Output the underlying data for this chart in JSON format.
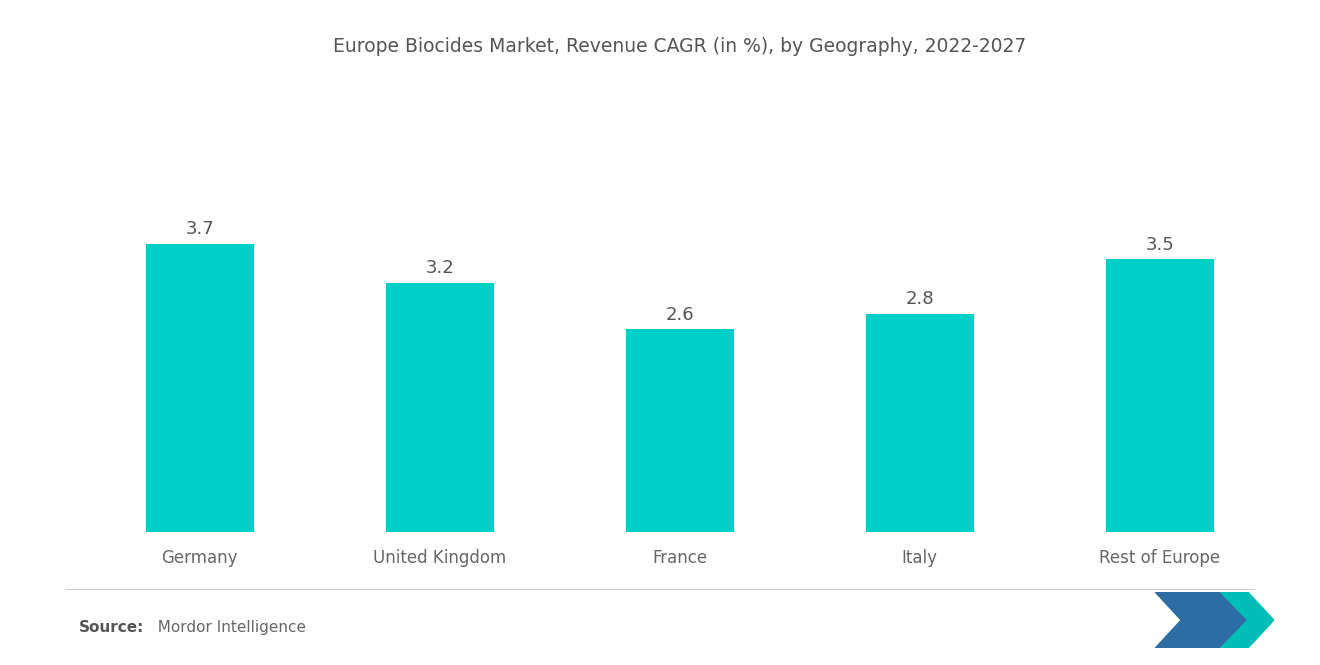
{
  "title": "Europe Biocides Market, Revenue CAGR (in %), by Geography, 2022-2027",
  "categories": [
    "Germany",
    "United Kingdom",
    "France",
    "Italy",
    "Rest of Europe"
  ],
  "values": [
    3.7,
    3.2,
    2.6,
    2.8,
    3.5
  ],
  "bar_color": "#00CEC9",
  "background_color": "#ffffff",
  "title_color": "#555555",
  "label_color": "#666666",
  "value_color": "#555555",
  "source_bold": "Source:",
  "source_text": "  Mordor Intelligence",
  "title_fontsize": 13.5,
  "value_fontsize": 13,
  "category_fontsize": 12,
  "source_fontsize": 11,
  "ylim": [
    0,
    5.8
  ],
  "bar_width": 0.45,
  "logo_color_left": "#2E6DA4",
  "logo_color_right": "#00BDB8"
}
